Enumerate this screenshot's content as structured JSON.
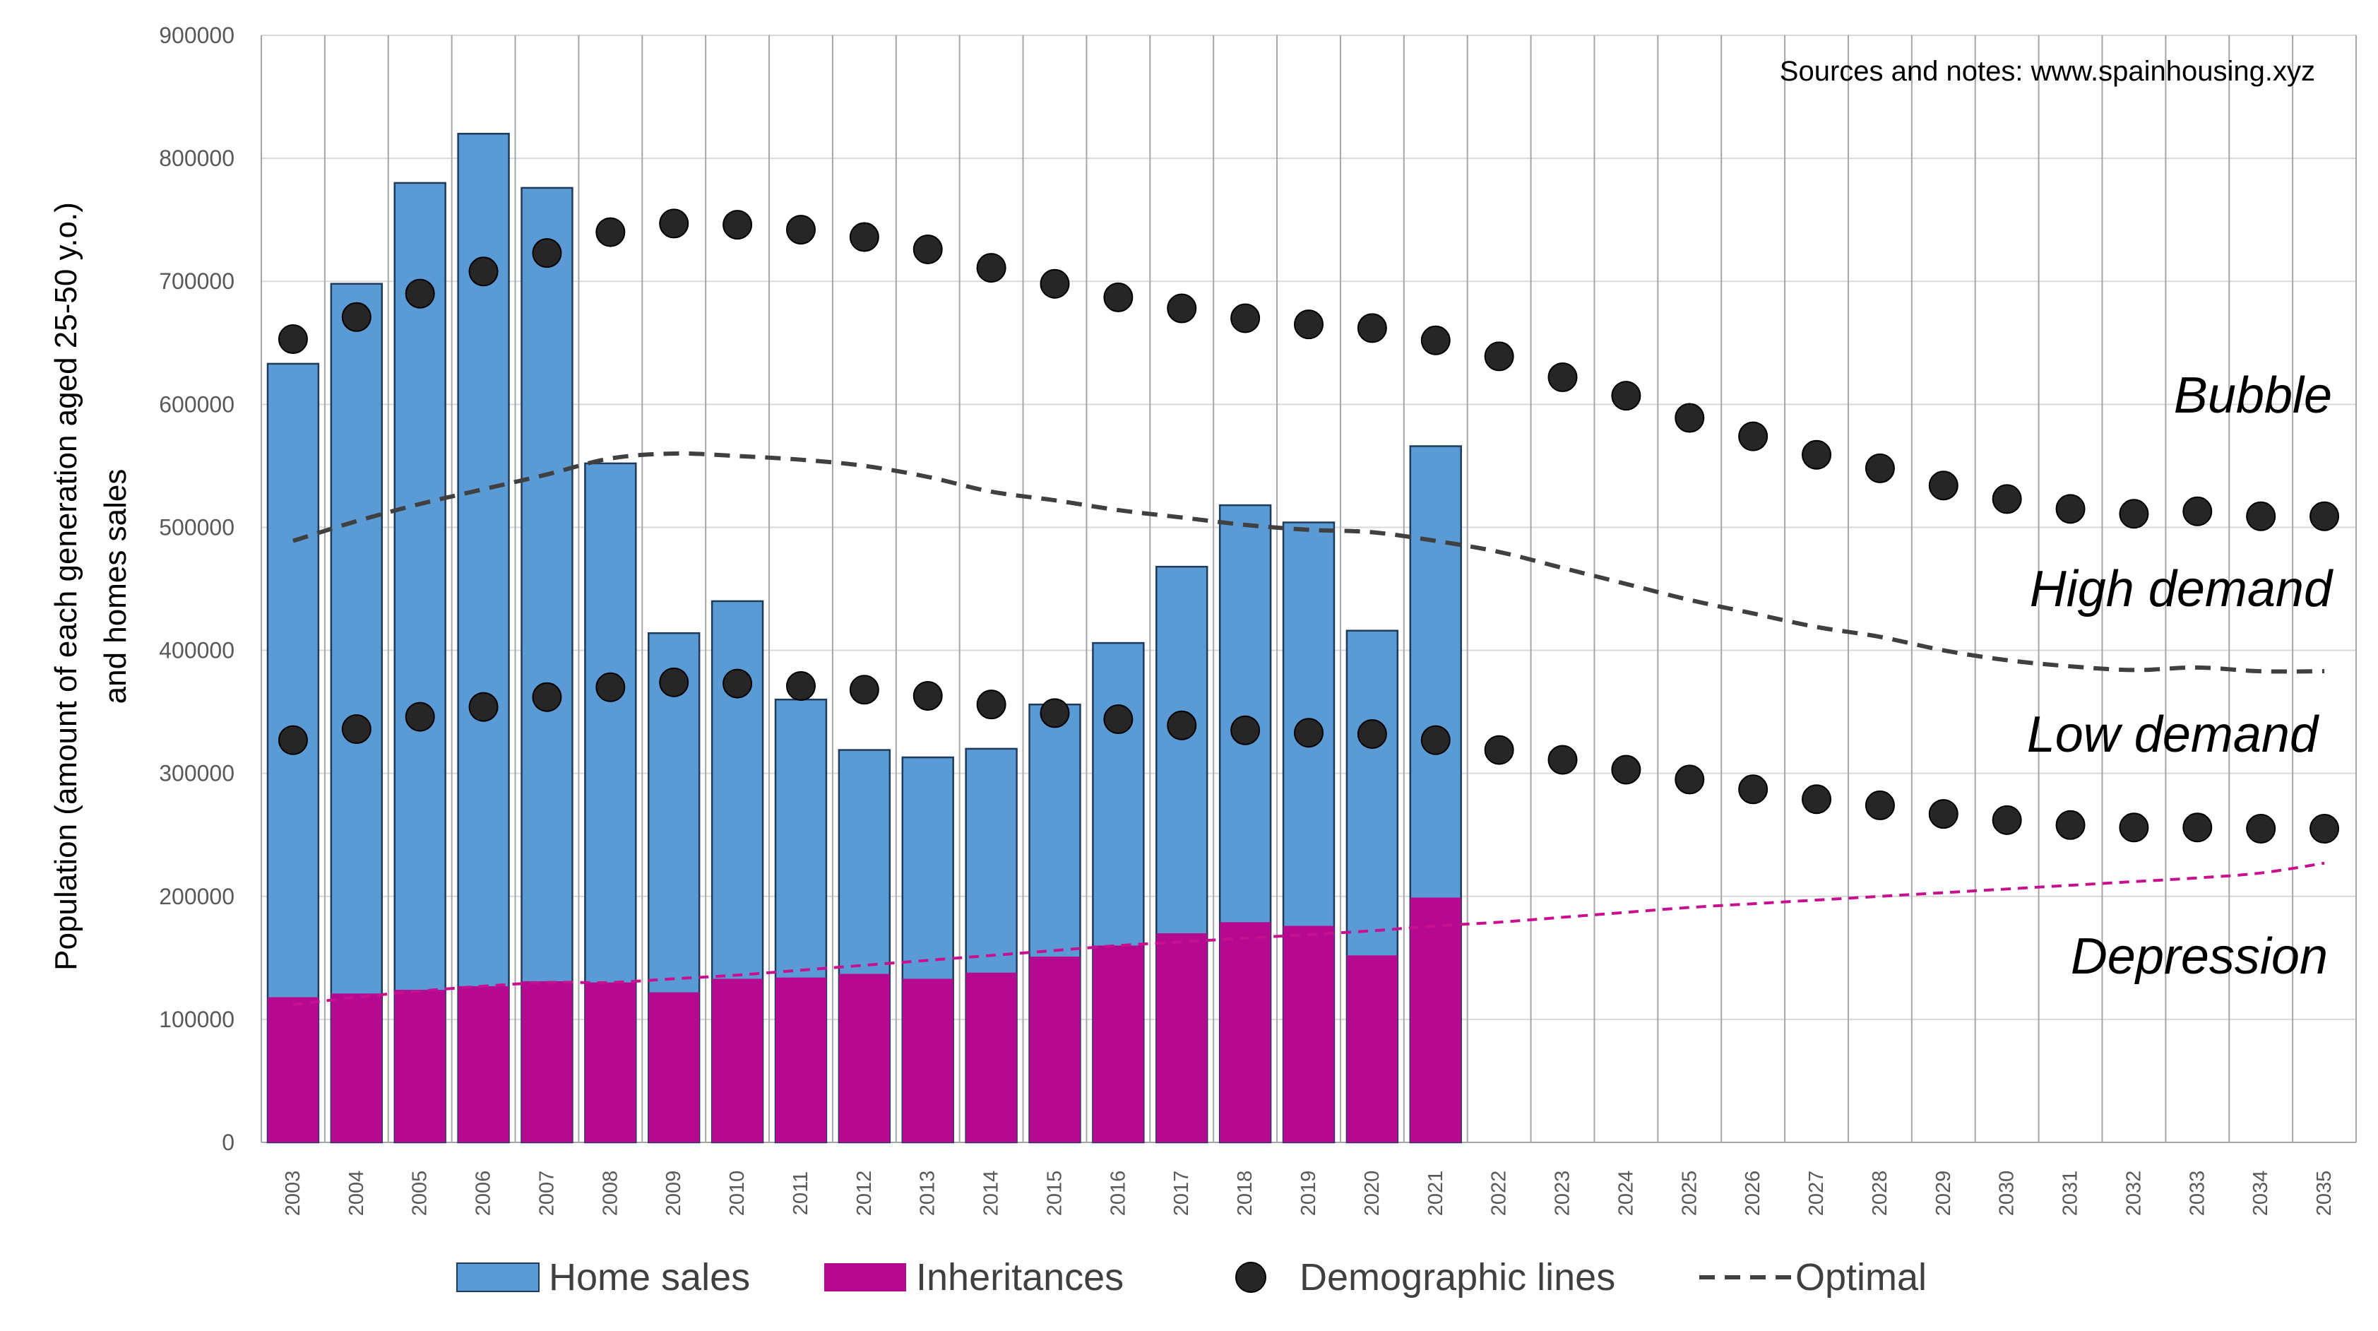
{
  "chart_data": {
    "type": "bar",
    "stacked": true,
    "xlabel": "",
    "ylabel": "Population (amount of each generation aged 25-50 y.o.)",
    "ylabel_line2": "and homes sales",
    "ylim": [
      0,
      900000
    ],
    "yticks": [
      0,
      100000,
      200000,
      300000,
      400000,
      500000,
      600000,
      700000,
      800000,
      900000
    ],
    "grid": true,
    "legend_position": "bottom",
    "note": "Sources and notes: www.spainhousing.xyz",
    "zone_labels": [
      "Bubble",
      "High demand",
      "Low demand",
      "Depression"
    ],
    "categories": [
      "2003",
      "2004",
      "2005",
      "2006",
      "2007",
      "2008",
      "2009",
      "2010",
      "2011",
      "2012",
      "2013",
      "2014",
      "2015",
      "2016",
      "2017",
      "2018",
      "2019",
      "2020",
      "2021",
      "2022",
      "2023",
      "2024",
      "2025",
      "2026",
      "2027",
      "2028",
      "2029",
      "2030",
      "2031",
      "2032",
      "2033",
      "2034",
      "2035"
    ],
    "bar_series": [
      {
        "name": "Inheritances",
        "color": "#b5098f",
        "values": [
          118000,
          121000,
          124000,
          127000,
          131000,
          130000,
          122000,
          133000,
          134000,
          137000,
          133000,
          138000,
          151000,
          160000,
          170000,
          179000,
          176000,
          152000,
          199000
        ]
      },
      {
        "name": "Home sales",
        "color": "#5b9bd5",
        "values": [
          633000,
          698000,
          780000,
          820000,
          776000,
          552000,
          414000,
          440000,
          360000,
          319000,
          313000,
          320000,
          356000,
          406000,
          468000,
          518000,
          504000,
          416000,
          566000
        ]
      }
    ],
    "line_series": [
      {
        "name": "Optimal",
        "color": "#404040",
        "style": "dashed",
        "values": [
          489000,
          505000,
          519000,
          531000,
          543000,
          556000,
          560000,
          558000,
          555000,
          550000,
          541000,
          529000,
          522000,
          514000,
          508000,
          502000,
          498000,
          496000,
          489000,
          480000,
          467000,
          454000,
          441000,
          430000,
          419000,
          411000,
          400000,
          392000,
          387000,
          384000,
          386000,
          383000,
          383000
        ]
      },
      {
        "name": "",
        "color": "#c8108f",
        "style": "dashed",
        "values": [
          112000,
          118000,
          123000,
          127000,
          130000,
          130000,
          133000,
          136000,
          140000,
          144000,
          148000,
          152000,
          156000,
          160000,
          163000,
          166000,
          169000,
          172000,
          176000,
          179000,
          183000,
          187000,
          191000,
          194000,
          197000,
          200000,
          203000,
          206000,
          209000,
          212000,
          215000,
          219000,
          227000
        ]
      }
    ],
    "point_series": [
      {
        "name": "Demographic lines",
        "color": "#262626",
        "values": [
          653000,
          671000,
          690000,
          708000,
          723000,
          740000,
          747000,
          746000,
          742000,
          736000,
          726000,
          711000,
          698000,
          687000,
          678000,
          670000,
          665000,
          662000,
          652000,
          639000,
          622000,
          607000,
          589000,
          574000,
          559000,
          548000,
          534000,
          523000,
          515000,
          511000,
          513000,
          509000,
          509000
        ]
      },
      {
        "name": "",
        "color": "#262626",
        "values": [
          327000,
          336000,
          346000,
          354000,
          362000,
          370000,
          374000,
          373000,
          371000,
          368000,
          363000,
          356000,
          349000,
          344000,
          339000,
          335000,
          333000,
          332000,
          327000,
          319000,
          311000,
          303000,
          295000,
          287000,
          279000,
          274000,
          267000,
          262000,
          258000,
          256000,
          256000,
          255000,
          255000
        ]
      }
    ]
  },
  "legend": {
    "items": [
      {
        "label": "Home sales",
        "kind": "bar",
        "color": "#5b9bd5"
      },
      {
        "label": "Inheritances",
        "kind": "bar",
        "color": "#b5098f"
      },
      {
        "label": "Demographic lines",
        "kind": "dot",
        "color": "#262626"
      },
      {
        "label": "Optimal",
        "kind": "dash",
        "color": "#404040"
      }
    ]
  }
}
